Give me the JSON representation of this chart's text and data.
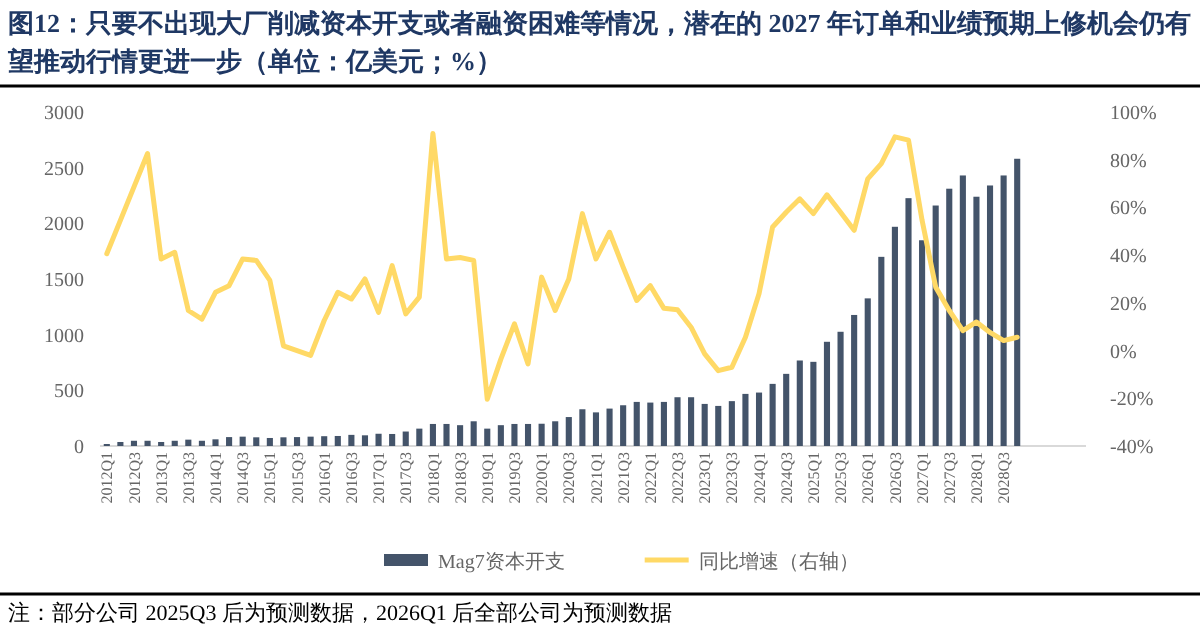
{
  "chart_data": {
    "type": "bar",
    "title": "图12：只要不出现大厂削减资本开支或者融资困难等情况，潜在的 2027 年订单和业绩预期上修机会仍有望推动行情更进一步（单位：亿美元；%）",
    "categories": [
      "2012Q1",
      null,
      "2012Q3",
      null,
      "2013Q1",
      null,
      "2013Q3",
      null,
      "2014Q1",
      null,
      "2014Q3",
      null,
      "2015Q1",
      null,
      "2015Q3",
      null,
      "2016Q1",
      null,
      "2016Q3",
      null,
      "2017Q1",
      null,
      "2017Q3",
      null,
      "2018Q1",
      null,
      "2018Q3",
      null,
      "2019Q1",
      null,
      "2019Q3",
      null,
      "2020Q1",
      null,
      "2020Q3",
      null,
      "2021Q1",
      null,
      "2021Q3",
      null,
      "2022Q1",
      null,
      "2022Q3",
      null,
      "2023Q1",
      null,
      "2023Q3",
      null,
      "2024Q1",
      null,
      "2024Q3",
      null,
      "2025Q1",
      null,
      "2025Q3",
      null,
      "2026Q1",
      null,
      "2026Q3",
      null,
      "2027Q1",
      null,
      "2027Q3",
      null,
      "2028Q1",
      null,
      "2028Q3",
      null
    ],
    "series": [
      {
        "name": "Mag7资本开支",
        "color": "#44546a",
        "values": [
          18,
          36,
          47,
          47,
          36,
          47,
          57,
          47,
          60,
          80,
          84,
          78,
          72,
          78,
          80,
          84,
          88,
          90,
          100,
          96,
          110,
          108,
          130,
          156,
          198,
          198,
          187,
          222,
          156,
          187,
          198,
          198,
          200,
          222,
          260,
          330,
          302,
          336,
          366,
          396,
          390,
          396,
          438,
          438,
          378,
          360,
          403,
          468,
          480,
          558,
          648,
          768,
          756,
          936,
          1026,
          1177,
          1326,
          1699,
          1969,
          2226,
          1848,
          2160,
          2311,
          2430,
          2239,
          2340,
          2430,
          2580
        ]
      },
      {
        "name": "同比增速（右轴）",
        "type": "line",
        "axis": "y2",
        "color": "#ffd966",
        "values": [
          40.6,
          54.6,
          68.6,
          82.6,
          38.4,
          41.2,
          16.8,
          13.2,
          24.4,
          27.2,
          38.4,
          37.8,
          29.4,
          2,
          0,
          -2,
          12.6,
          24.4,
          21.6,
          30,
          16,
          35.6,
          15.4,
          22.4,
          91,
          38.4,
          39,
          37.8,
          -20.4,
          -3.6,
          11.2,
          -5.6,
          30.8,
          16.8,
          30,
          57.4,
          38.4,
          49.6,
          35,
          21,
          27.2,
          17.7,
          17.1,
          9.8,
          -1.4,
          -8.4,
          -7,
          5.6,
          23.8,
          51.8,
          58,
          63.6,
          57.4,
          65.3,
          58,
          50.4,
          72,
          78.4,
          89.6,
          88.2,
          54.6,
          26.6,
          16.8,
          8.4,
          12,
          7.6,
          4.2,
          5.6
        ]
      }
    ],
    "ylim": [
      0,
      3000
    ],
    "yticks": [
      0,
      500,
      1000,
      1500,
      2000,
      2500,
      3000
    ],
    "y2lim": [
      -40,
      100
    ],
    "y2ticks": [
      {
        "value": -40,
        "label": "-40%"
      },
      {
        "value": -20,
        "label": "-20%"
      },
      {
        "value": 0,
        "label": "0%"
      },
      {
        "value": 20,
        "label": "20%"
      },
      {
        "value": 40,
        "label": "40%"
      },
      {
        "value": 60,
        "label": "60%"
      },
      {
        "value": 80,
        "label": "80%"
      },
      {
        "value": 100,
        "label": "100%"
      }
    ],
    "legend": "bottom",
    "annotations": [
      "注：部分公司 2025Q3 后为预测数据，2026Q1 后全部公司为预测数据"
    ]
  }
}
